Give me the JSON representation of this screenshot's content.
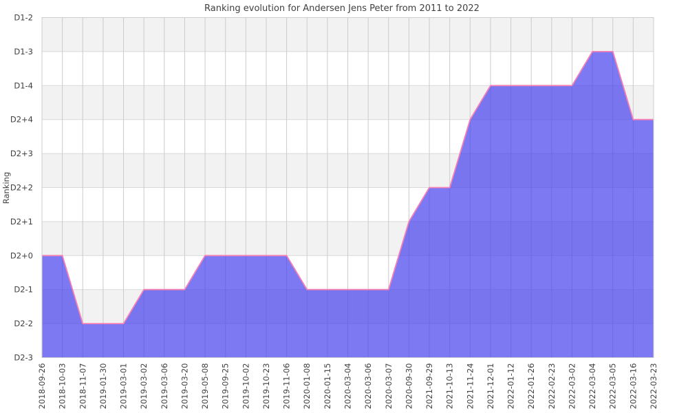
{
  "chart_data": {
    "type": "area",
    "title": "Ranking evolution for Andersen Jens Peter from 2011 to 2022",
    "ylabel": "Ranking",
    "xlabel": "",
    "grid": true,
    "legend_position": "none",
    "y_levels_bottom_to_top": [
      "D2-3",
      "D2-2",
      "D2-1",
      "D2+0",
      "D2+1",
      "D2+2",
      "D2+3",
      "D2+4",
      "D1-4",
      "D1-3",
      "D1-2"
    ],
    "x": [
      "2018-09-26",
      "2018-10-03",
      "2018-11-07",
      "2019-01-30",
      "2019-03-01",
      "2019-03-02",
      "2019-03-06",
      "2019-03-20",
      "2019-05-08",
      "2019-09-25",
      "2019-10-02",
      "2019-10-23",
      "2019-11-06",
      "2020-01-08",
      "2020-01-15",
      "2020-03-04",
      "2020-03-06",
      "2020-03-07",
      "2020-09-30",
      "2021-09-29",
      "2021-10-13",
      "2021-11-24",
      "2021-12-01",
      "2022-01-12",
      "2022-01-26",
      "2022-02-23",
      "2022-03-02",
      "2022-03-04",
      "2022-03-05",
      "2022-03-16",
      "2022-03-23"
    ],
    "values": [
      "D2+0",
      "D2+0",
      "D2-2",
      "D2-2",
      "D2-2",
      "D2-1",
      "D2-1",
      "D2-1",
      "D2+0",
      "D2+0",
      "D2+0",
      "D2+0",
      "D2+0",
      "D2-1",
      "D2-1",
      "D2-1",
      "D2-1",
      "D2-1",
      "D2+1",
      "D2+2",
      "D2+2",
      "D2+4",
      "D1-4",
      "D1-4",
      "D1-4",
      "D1-4",
      "D1-4",
      "D1-3",
      "D1-3",
      "D2+4",
      "D2+4"
    ],
    "style": {
      "area_fill": "rgba(68,64,238,0.70)",
      "line_color": "#f680b4",
      "band_gray": "#f2f2f2",
      "band_white": "#ffffff",
      "grid_vertical": "#cbcbcb",
      "grid_horizontal": "#d9d9d9",
      "border": "#cccccc",
      "text_color": "#404040"
    }
  }
}
